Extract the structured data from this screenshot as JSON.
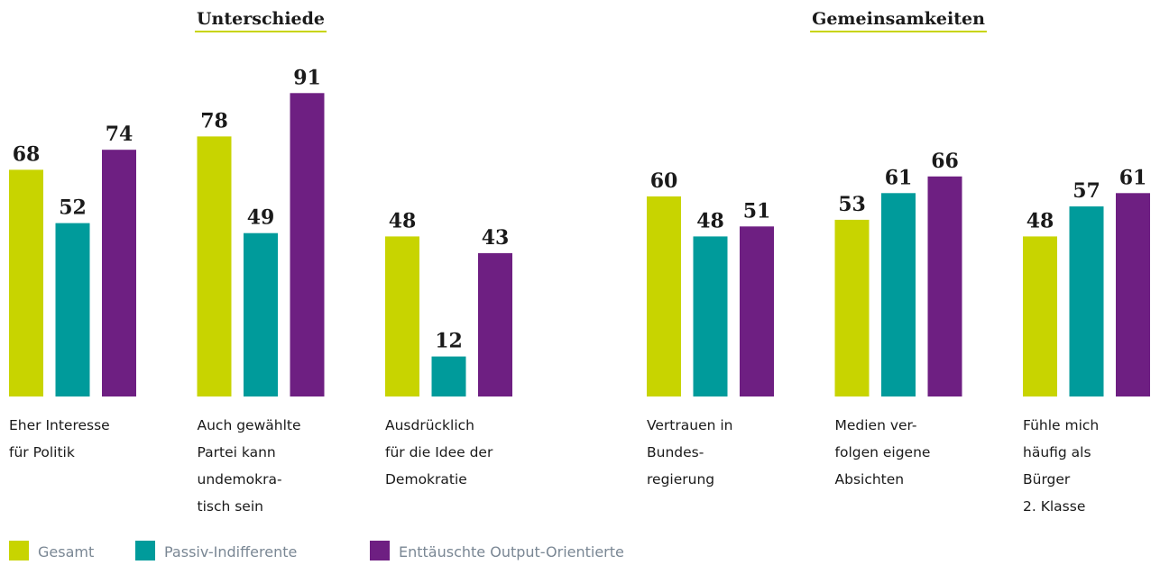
{
  "chart_data": [
    {
      "type": "bar",
      "title": "Unterschiede",
      "categories": [
        "Eher Interesse\nfür Politik",
        "Auch gewählte\nPartei kann\nundemokra-\ntisch sein",
        "Ausdrücklich\nfür die Idee der\nDemokratie"
      ],
      "series": [
        {
          "name": "Gesamt",
          "color": "#c8d400",
          "values": [
            68,
            78,
            48
          ]
        },
        {
          "name": "Passiv-Indifferente",
          "color": "#009b9b",
          "values": [
            52,
            49,
            12
          ]
        },
        {
          "name": "Enttäuschte Output-Orientierte",
          "color": "#6e1f82",
          "values": [
            74,
            91,
            43
          ]
        }
      ]
    },
    {
      "type": "bar",
      "title": "Gemeinsamkeiten",
      "categories": [
        "Vertrauen in\nBundes-\nregierung",
        "Medien ver-\nfolgen eigene\nAbsichten",
        "Fühle mich\nhäufig als\nBürger\n2. Klasse"
      ],
      "series": [
        {
          "name": "Gesamt",
          "color": "#c8d400",
          "values": [
            60,
            53,
            48
          ]
        },
        {
          "name": "Passiv-Indifferente",
          "color": "#009b9b",
          "values": [
            48,
            61,
            57
          ]
        },
        {
          "name": "Enttäuschte Output-Orientierte",
          "color": "#6e1f82",
          "values": [
            51,
            66,
            61
          ]
        }
      ]
    }
  ]
}
